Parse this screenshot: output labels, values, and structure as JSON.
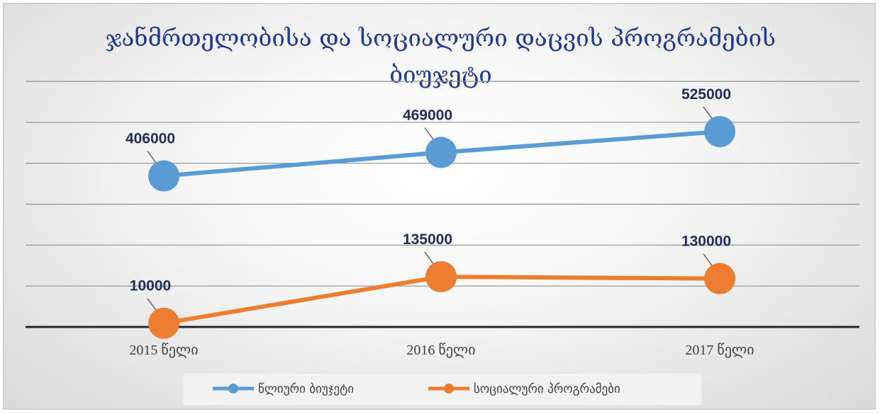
{
  "chart_data": {
    "type": "line",
    "title": [
      "ჯანმრთელობისა და სოციალური დაცვის პროგრამების",
      "ბიუჯეტი"
    ],
    "categories": [
      "2015 წელი",
      "2016 წელი",
      "2017 წელი"
    ],
    "series": [
      {
        "name": "წლიური ბიუჯეტი",
        "values": [
          406000,
          469000,
          525000
        ],
        "labels": [
          "406000",
          "469000",
          "525000"
        ],
        "color": "#5b9bd5"
      },
      {
        "name": "სოციალური პროგრამები",
        "values": [
          10000,
          135000,
          130000
        ],
        "labels": [
          "10000",
          "135000",
          "130000"
        ],
        "color": "#ed7d31"
      }
    ],
    "gridlines": true,
    "legend_position": "bottom"
  }
}
